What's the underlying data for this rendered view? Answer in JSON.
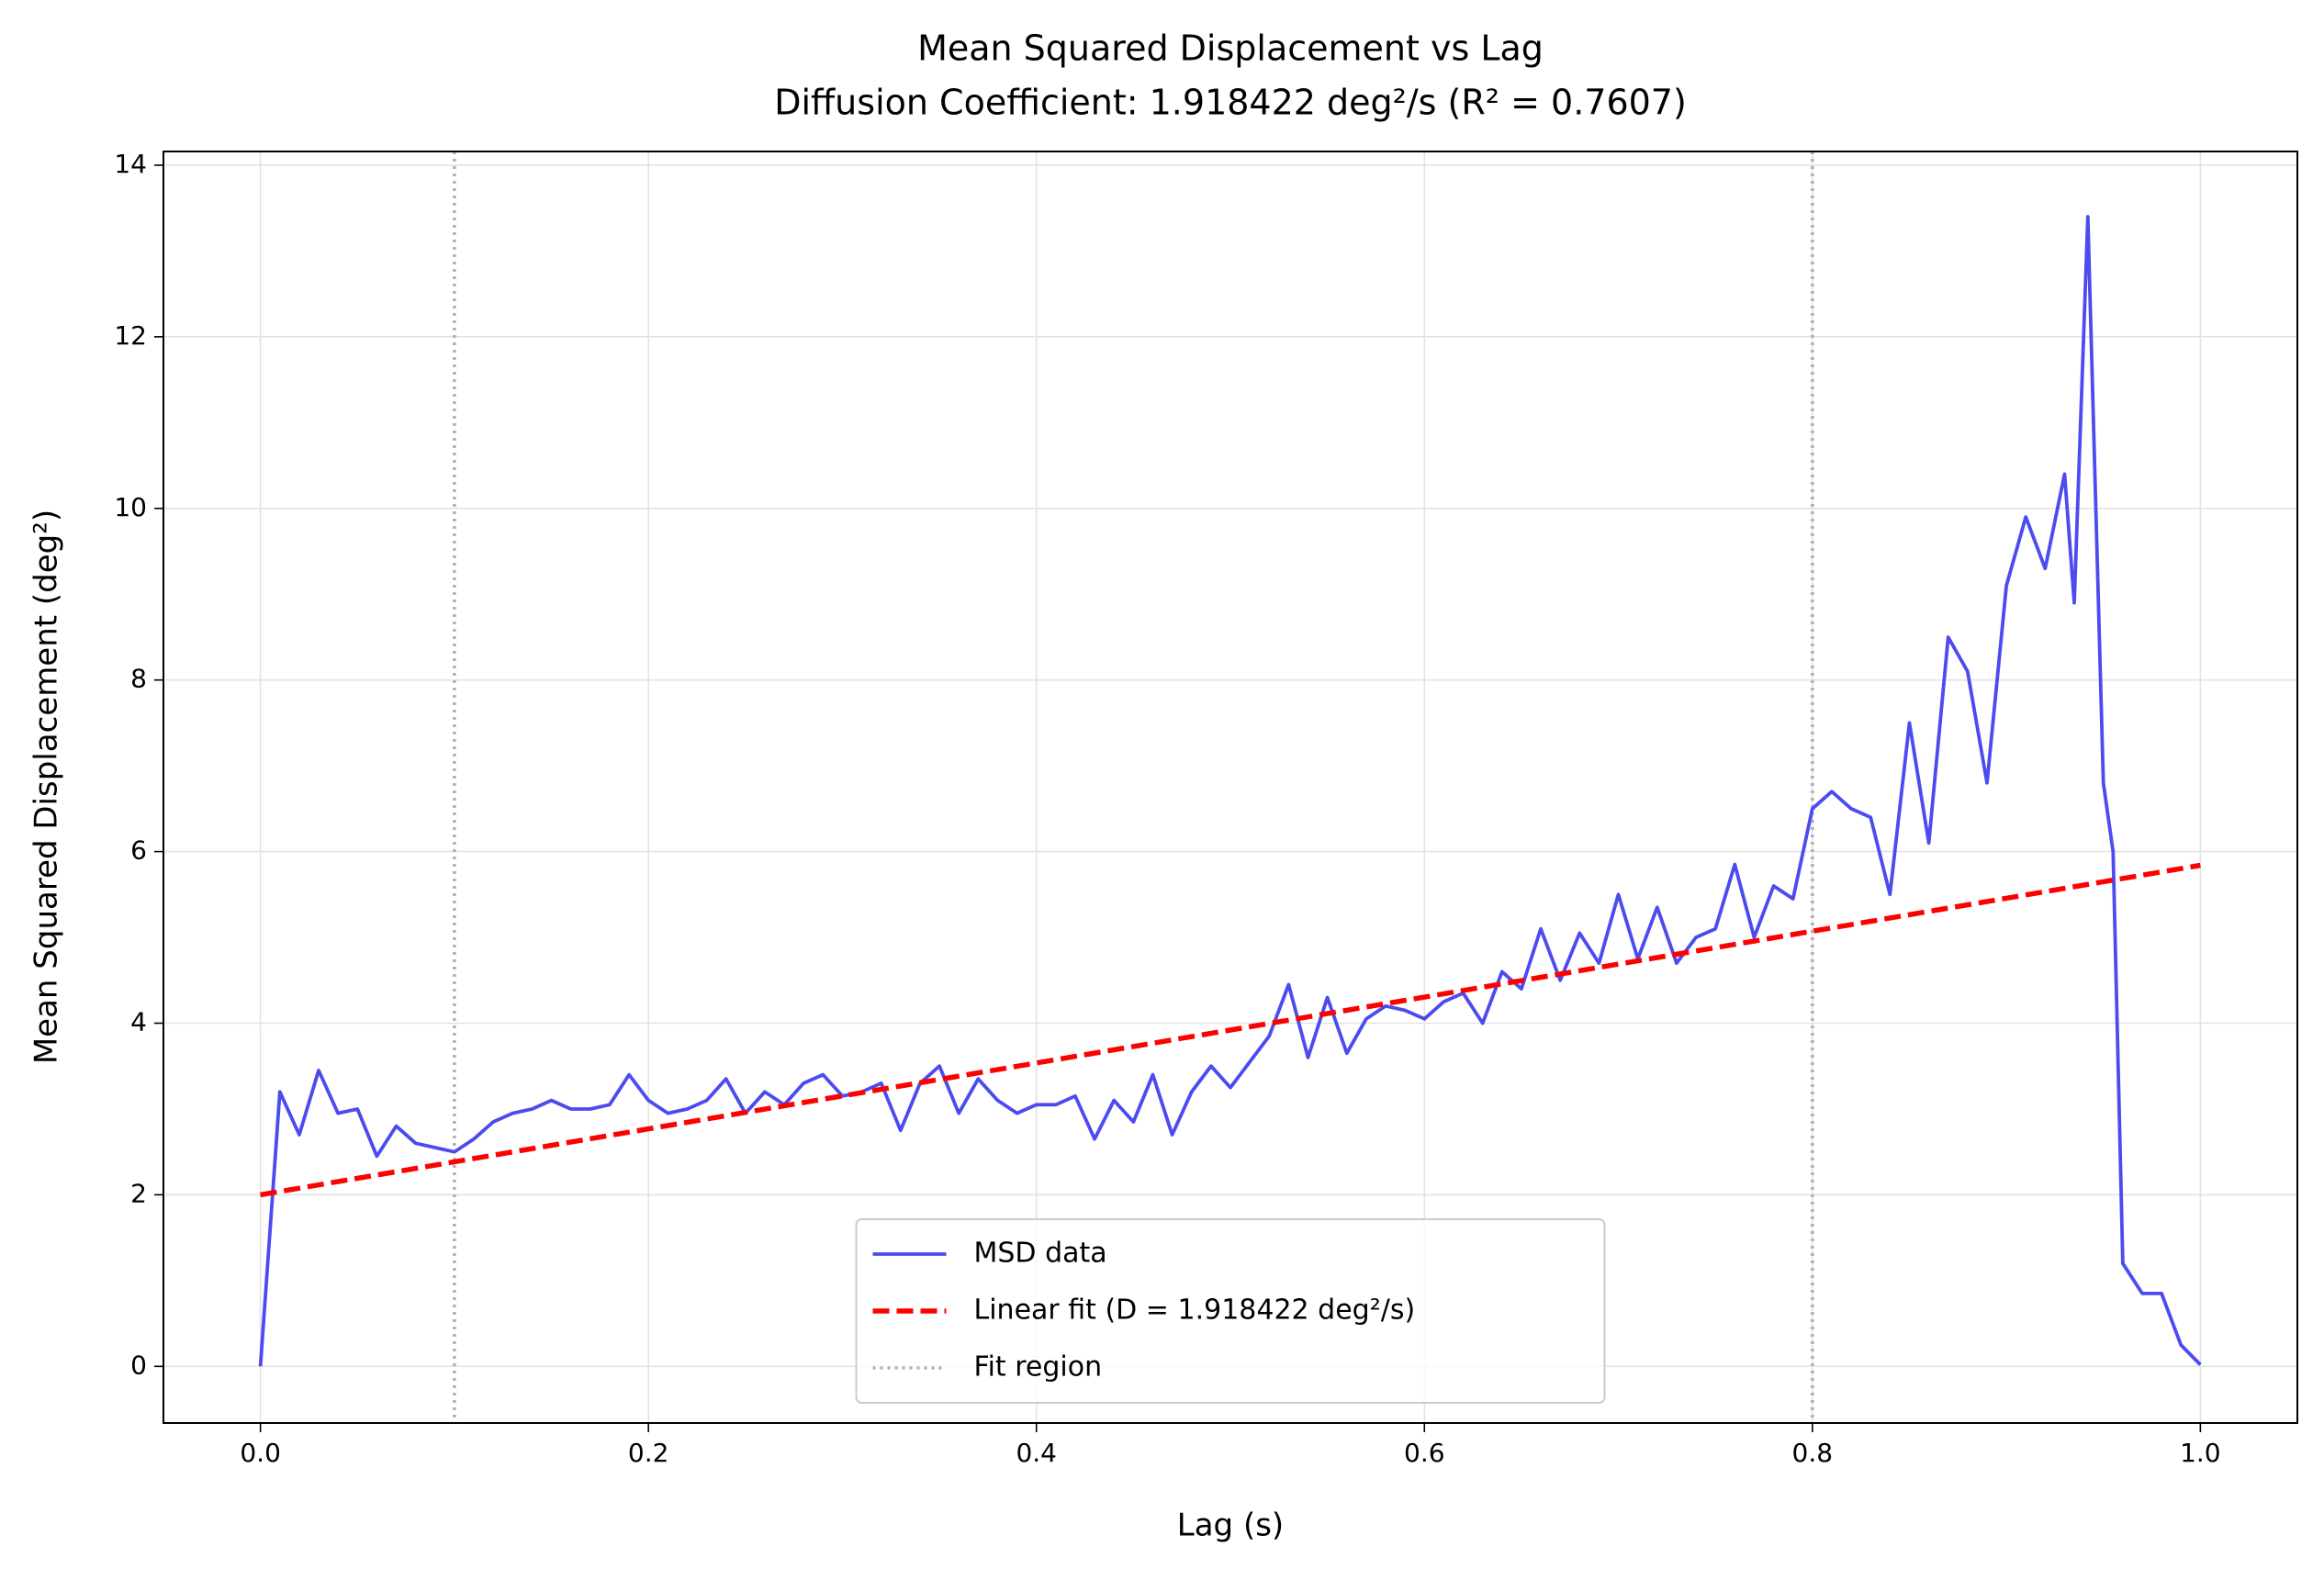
{
  "chart_data": {
    "type": "line",
    "title": "Mean Squared Displacement vs Lag",
    "subtitle": "Diffusion Coefficient: 1.918422 deg²/s (R² = 0.7607)",
    "x_label": "Lag (s)",
    "y_label": "Mean Squared Displacement (deg²)",
    "xlim": [
      -0.05,
      1.05
    ],
    "ylim": [
      -0.66,
      14.16
    ],
    "xticks": [
      {
        "value": 0,
        "label": "0.0"
      },
      0.2,
      0.4,
      0.6,
      0.8,
      {
        "value": 1,
        "label": "1.0"
      }
    ],
    "yticks": [
      0,
      2,
      4,
      6,
      8,
      10,
      12,
      14
    ],
    "grid": true,
    "legend": "lower center",
    "series": [
      {
        "name": "MSD data",
        "color": "#4b4bf0",
        "style": "solid",
        "x": [
          0,
          0.01,
          0.02,
          0.03,
          0.04,
          0.05,
          0.06,
          0.07,
          0.08,
          0.09,
          0.1,
          0.11,
          0.12,
          0.13,
          0.14,
          0.15,
          0.16,
          0.17,
          0.18,
          0.19,
          0.2,
          0.21,
          0.22,
          0.23,
          0.24,
          0.25,
          0.26,
          0.27,
          0.28,
          0.29,
          0.3,
          0.31,
          0.32,
          0.33,
          0.34,
          0.35,
          0.36,
          0.37,
          0.38,
          0.39,
          0.4,
          0.41,
          0.42,
          0.43,
          0.44,
          0.45,
          0.46,
          0.47,
          0.48,
          0.49,
          0.5,
          0.51,
          0.52,
          0.53,
          0.54,
          0.55,
          0.56,
          0.57,
          0.58,
          0.59,
          0.6,
          0.61,
          0.62,
          0.63,
          0.64,
          0.65,
          0.66,
          0.67,
          0.68,
          0.69,
          0.7,
          0.71,
          0.72,
          0.73,
          0.74,
          0.75,
          0.76,
          0.77,
          0.78,
          0.79,
          0.8,
          0.81,
          0.82,
          0.83,
          0.84,
          0.85,
          0.86,
          0.87,
          0.88,
          0.89,
          0.9,
          0.91,
          0.92,
          0.93,
          0.935,
          0.942,
          0.95,
          0.955,
          0.96,
          0.97,
          0.98,
          0.99,
          1.0
        ],
        "values": [
          0,
          3.2,
          2.7,
          3.45,
          2.95,
          3.0,
          2.45,
          2.8,
          2.6,
          2.55,
          2.5,
          2.65,
          2.85,
          2.95,
          3.0,
          3.1,
          3.0,
          3.0,
          3.05,
          3.4,
          3.1,
          2.95,
          3.0,
          3.1,
          3.35,
          2.95,
          3.2,
          3.05,
          3.3,
          3.4,
          3.15,
          3.2,
          3.3,
          2.75,
          3.3,
          3.5,
          2.95,
          3.35,
          3.1,
          2.95,
          3.05,
          3.05,
          3.15,
          2.65,
          3.1,
          2.85,
          3.4,
          2.7,
          3.2,
          3.5,
          3.25,
          3.55,
          3.85,
          4.45,
          3.6,
          4.3,
          3.65,
          4.05,
          4.2,
          4.15,
          4.05,
          4.25,
          4.35,
          4.0,
          4.6,
          4.4,
          5.1,
          4.5,
          5.05,
          4.7,
          5.5,
          4.75,
          5.35,
          4.7,
          5.0,
          5.1,
          5.85,
          5.0,
          5.6,
          5.45,
          6.5,
          6.7,
          6.5,
          6.4,
          5.5,
          7.5,
          6.1,
          8.5,
          8.1,
          6.8,
          9.1,
          9.9,
          9.3,
          10.4,
          8.9,
          13.4,
          6.8,
          6.0,
          1.2,
          0.85,
          0.85,
          0.25,
          0.02
        ]
      },
      {
        "name": "Linear fit (D = 1.918422 deg²/s)",
        "color": "#ff0000",
        "style": "dashed",
        "x": [
          0,
          1
        ],
        "values": [
          2.0,
          5.84
        ]
      }
    ],
    "vlines": {
      "name": "Fit region",
      "color": "#b0b0b0",
      "values": [
        0.1,
        0.8
      ]
    }
  }
}
